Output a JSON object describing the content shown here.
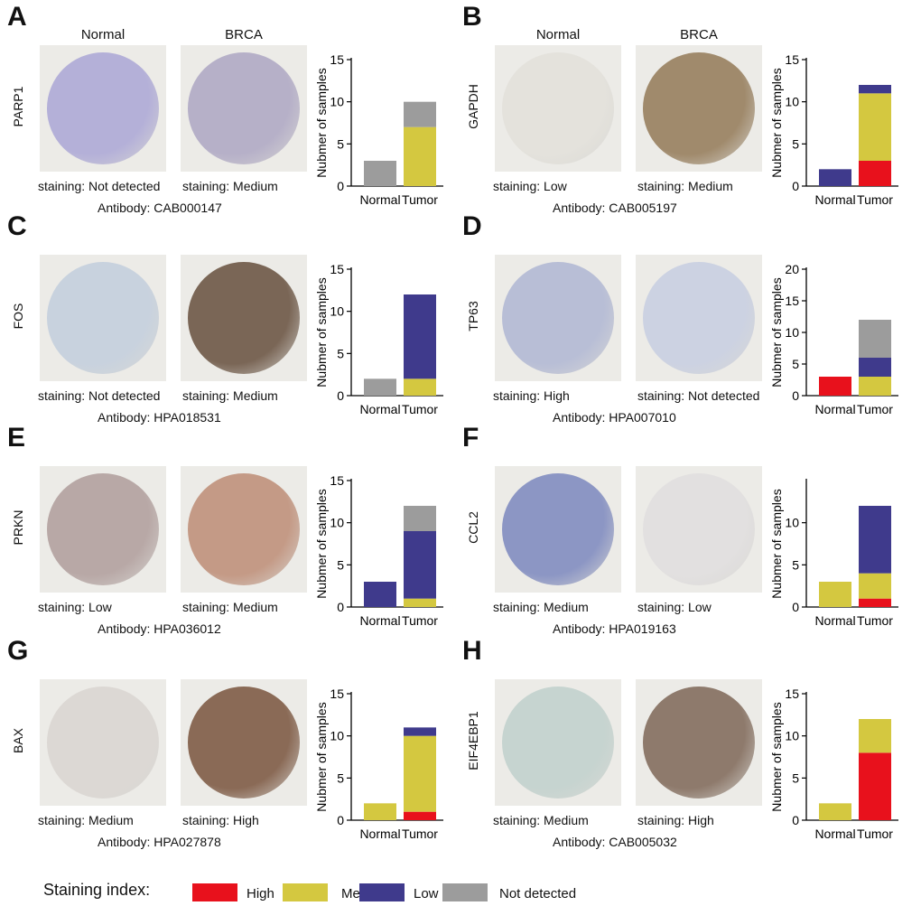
{
  "colors": {
    "High": "#e8111c",
    "Medium": "#d4c840",
    "Low": "#3f3a8c",
    "Not detected": "#9c9c9c"
  },
  "column_headers": {
    "normal": "Normal",
    "tumor": "BRCA"
  },
  "panels": [
    {
      "id": "A",
      "gene": "PARP1",
      "normal_stain": "staining: Not detected",
      "tumor_stain": "staining: Medium",
      "antibody": "Antibody: CAB000147",
      "show_headers": true,
      "normal_tint": "#b4b0d8",
      "tumor_tint": "#b6b0c8",
      "chart_data": {
        "type": "bar",
        "categories": [
          "Normal",
          "Tumor"
        ],
        "ylabel": "Nubmer of samples",
        "ylim": [
          0,
          15
        ],
        "yticks": [
          0,
          5,
          10,
          15
        ],
        "series": [
          {
            "name": "High",
            "values": [
              0,
              0
            ]
          },
          {
            "name": "Medium",
            "values": [
              0,
              7
            ]
          },
          {
            "name": "Low",
            "values": [
              0,
              0
            ]
          },
          {
            "name": "Not detected",
            "values": [
              3,
              3
            ]
          }
        ]
      }
    },
    {
      "id": "B",
      "gene": "GAPDH",
      "normal_stain": "staining: Low",
      "tumor_stain": "staining: Medium",
      "antibody": "Antibody: CAB005197",
      "show_headers": true,
      "normal_tint": "#e4e2dc",
      "tumor_tint": "#a08a6c",
      "chart_data": {
        "type": "bar",
        "categories": [
          "Normal",
          "Tumor"
        ],
        "ylabel": "Nubmer of samples",
        "ylim": [
          0,
          15
        ],
        "yticks": [
          0,
          5,
          10,
          15
        ],
        "series": [
          {
            "name": "High",
            "values": [
              0,
              3
            ]
          },
          {
            "name": "Medium",
            "values": [
              0,
              8
            ]
          },
          {
            "name": "Low",
            "values": [
              2,
              1
            ]
          },
          {
            "name": "Not detected",
            "values": [
              0,
              0
            ]
          }
        ]
      }
    },
    {
      "id": "C",
      "gene": "FOS",
      "normal_stain": "staining: Not detected",
      "tumor_stain": "staining: Medium",
      "antibody": "Antibody: HPA018531",
      "show_headers": false,
      "normal_tint": "#c8d2de",
      "tumor_tint": "#7a6656",
      "chart_data": {
        "type": "bar",
        "categories": [
          "Normal",
          "Tumor"
        ],
        "ylabel": "Nubmer of samples",
        "ylim": [
          0,
          15
        ],
        "yticks": [
          0,
          5,
          10,
          15
        ],
        "series": [
          {
            "name": "High",
            "values": [
              0,
              0
            ]
          },
          {
            "name": "Medium",
            "values": [
              0,
              2
            ]
          },
          {
            "name": "Low",
            "values": [
              0,
              10
            ]
          },
          {
            "name": "Not detected",
            "values": [
              2,
              0
            ]
          }
        ]
      }
    },
    {
      "id": "D",
      "gene": "TP63",
      "normal_stain": "staining: High",
      "tumor_stain": "staining: Not detected",
      "antibody": "Antibody: HPA007010",
      "show_headers": false,
      "normal_tint": "#b8bed6",
      "tumor_tint": "#ccd2e2",
      "chart_data": {
        "type": "bar",
        "categories": [
          "Normal",
          "Tumor"
        ],
        "ylabel": "Nubmer of samples",
        "ylim": [
          0,
          20
        ],
        "yticks": [
          0,
          5,
          10,
          15,
          20
        ],
        "series": [
          {
            "name": "High",
            "values": [
              3,
              0
            ]
          },
          {
            "name": "Medium",
            "values": [
              0,
              3
            ]
          },
          {
            "name": "Low",
            "values": [
              0,
              3
            ]
          },
          {
            "name": "Not detected",
            "values": [
              0,
              6
            ]
          }
        ]
      }
    },
    {
      "id": "E",
      "gene": "PRKN",
      "normal_stain": "staining: Low",
      "tumor_stain": "staining: Medium",
      "antibody": "Antibody: HPA036012",
      "show_headers": false,
      "normal_tint": "#b8a8a6",
      "tumor_tint": "#c49a86",
      "chart_data": {
        "type": "bar",
        "categories": [
          "Normal",
          "Tumor"
        ],
        "ylabel": "Nubmer of samples",
        "ylim": [
          0,
          15
        ],
        "yticks": [
          0,
          5,
          10,
          15
        ],
        "series": [
          {
            "name": "High",
            "values": [
              0,
              0
            ]
          },
          {
            "name": "Medium",
            "values": [
              0,
              1
            ]
          },
          {
            "name": "Low",
            "values": [
              3,
              8
            ]
          },
          {
            "name": "Not detected",
            "values": [
              0,
              3
            ]
          }
        ]
      }
    },
    {
      "id": "F",
      "gene": "CCL2",
      "normal_stain": "staining: Medium",
      "tumor_stain": "staining: Low",
      "antibody": "Antibody: HPA019163",
      "show_headers": false,
      "normal_tint": "#8c96c4",
      "tumor_tint": "#e2e0e0",
      "chart_data": {
        "type": "bar",
        "categories": [
          "Normal",
          "Tumor"
        ],
        "ylabel": "Nubmer of samples",
        "ylim": [
          0,
          15
        ],
        "yticks": [
          0,
          5,
          10
        ],
        "series": [
          {
            "name": "High",
            "values": [
              0,
              1
            ]
          },
          {
            "name": "Medium",
            "values": [
              3,
              3
            ]
          },
          {
            "name": "Low",
            "values": [
              0,
              8
            ]
          },
          {
            "name": "Not detected",
            "values": [
              0,
              0
            ]
          }
        ]
      }
    },
    {
      "id": "G",
      "gene": "BAX",
      "normal_stain": "staining: Medium",
      "tumor_stain": "staining: High",
      "antibody": "Antibody: HPA027878",
      "show_headers": false,
      "normal_tint": "#dcd8d4",
      "tumor_tint": "#8a6a56",
      "chart_data": {
        "type": "bar",
        "categories": [
          "Normal",
          "Tumor"
        ],
        "ylabel": "Nubmer of samples",
        "ylim": [
          0,
          15
        ],
        "yticks": [
          0,
          5,
          10,
          15
        ],
        "series": [
          {
            "name": "High",
            "values": [
              0,
              1
            ]
          },
          {
            "name": "Medium",
            "values": [
              2,
              9
            ]
          },
          {
            "name": "Low",
            "values": [
              0,
              1
            ]
          },
          {
            "name": "Not detected",
            "values": [
              0,
              0
            ]
          }
        ]
      }
    },
    {
      "id": "H",
      "gene": "EIF4EBP1",
      "normal_stain": "staining: Medium",
      "tumor_stain": "staining: High",
      "antibody": "Antibody: CAB005032",
      "show_headers": false,
      "normal_tint": "#c6d4d0",
      "tumor_tint": "#8e7a6c",
      "chart_data": {
        "type": "bar",
        "categories": [
          "Normal",
          "Tumor"
        ],
        "ylabel": "Nubmer of samples",
        "ylim": [
          0,
          15
        ],
        "yticks": [
          0,
          5,
          10,
          15
        ],
        "series": [
          {
            "name": "High",
            "values": [
              0,
              8
            ]
          },
          {
            "name": "Medium",
            "values": [
              2,
              4
            ]
          },
          {
            "name": "Low",
            "values": [
              0,
              0
            ]
          },
          {
            "name": "Not detected",
            "values": [
              0,
              0
            ]
          }
        ]
      }
    }
  ],
  "legend": {
    "title": "Staining index:",
    "items": [
      "High",
      "Medium",
      "Low",
      "Not detected"
    ]
  }
}
